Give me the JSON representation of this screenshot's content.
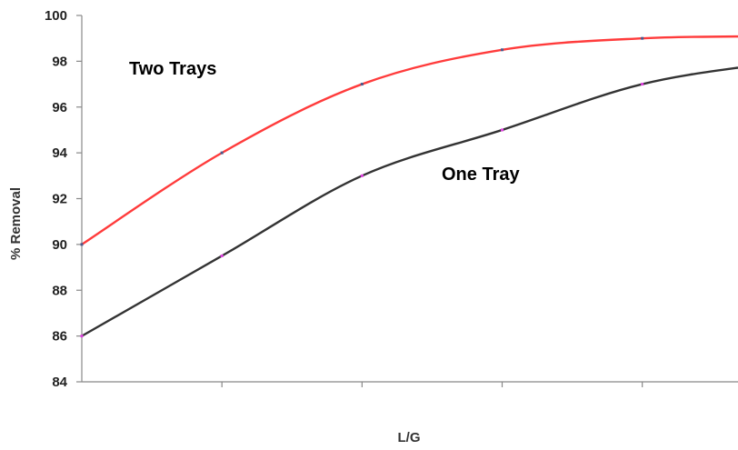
{
  "chart_data": {
    "type": "line",
    "title": "",
    "xlabel": "L/G",
    "ylabel": "% Removal",
    "ylim": [
      84,
      100
    ],
    "yticks": [
      84,
      86,
      88,
      90,
      92,
      94,
      96,
      98,
      100
    ],
    "x_ticks_count": 6,
    "x_tick_labels": [],
    "grid": false,
    "series": [
      {
        "name": "Two Trays",
        "color": "#ff3b3b",
        "points": [
          [
            0,
            90.0
          ],
          [
            1,
            94.0
          ],
          [
            2,
            97.0
          ],
          [
            3,
            98.5
          ],
          [
            4,
            99.0
          ],
          [
            5,
            99.1
          ],
          [
            6,
            99.2
          ]
        ],
        "marker_color": "#4a5a8c"
      },
      {
        "name": "One Tray",
        "color": "#333333",
        "points": [
          [
            0,
            86.0
          ],
          [
            1,
            89.5
          ],
          [
            2,
            93.0
          ],
          [
            3,
            95.0
          ],
          [
            4,
            97.0
          ],
          [
            5,
            98.0
          ],
          [
            6,
            99.0
          ]
        ],
        "marker_color": "#e040e0"
      }
    ]
  }
}
